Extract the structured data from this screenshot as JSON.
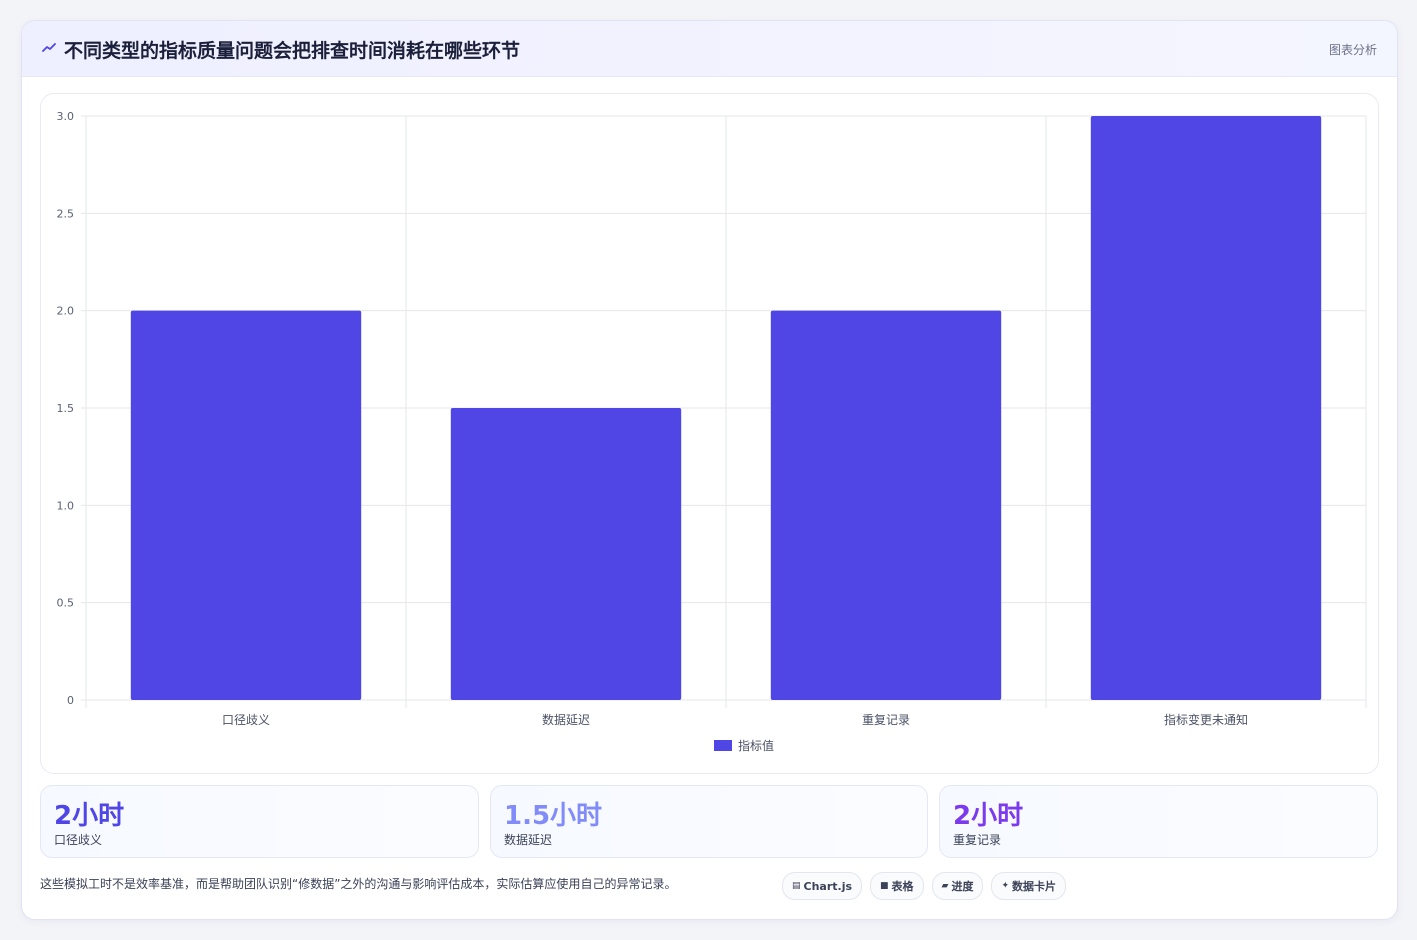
{
  "header": {
    "title": "不同类型的指标质量问题会把排查时间消耗在哪些环节",
    "tag": "图表分析",
    "icon": "chart-line-icon"
  },
  "chart_data": {
    "type": "bar",
    "categories": [
      "口径歧义",
      "数据延迟",
      "重复记录",
      "指标变更未通知"
    ],
    "series": [
      {
        "name": "指标值",
        "values": [
          2,
          1.5,
          2,
          3
        ],
        "color": "#4f46e5"
      }
    ],
    "ylim": [
      0,
      3
    ],
    "yticks": [
      "0",
      "0.5",
      "1.0",
      "1.5",
      "2.0",
      "2.5",
      "3.0"
    ],
    "grid": true,
    "legend_position": "bottom"
  },
  "stats": [
    {
      "value": "2小时",
      "label": "口径歧义",
      "color": "#4f46e5"
    },
    {
      "value": "1.5小时",
      "label": "数据延迟",
      "color": "#818cf8"
    },
    {
      "value": "2小时",
      "label": "重复记录",
      "color": "#7c3aed"
    }
  ],
  "footnote": "这些模拟工时不是效率基准，而是帮助团队识别“修数据”之外的沟通与影响评估成本，实际估算应使用自己的异常记录。",
  "chips": [
    {
      "icon": "chart-icon",
      "glyph": "▤",
      "label": "Chart.js"
    },
    {
      "icon": "table-icon",
      "glyph": "■",
      "label": "表格"
    },
    {
      "icon": "progress-icon",
      "glyph": "▰",
      "label": "进度"
    },
    {
      "icon": "sparkle-icon",
      "glyph": "✦",
      "label": "数据卡片"
    }
  ]
}
